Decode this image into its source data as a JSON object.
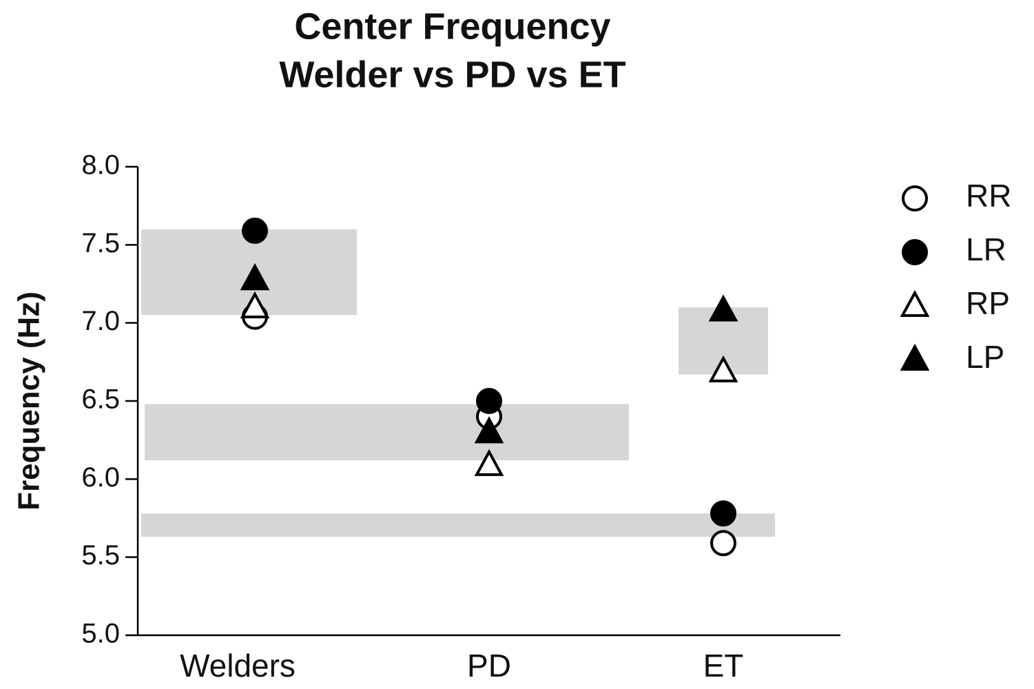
{
  "chart_data": {
    "type": "scatter",
    "title": "Center Frequency",
    "subtitle": "Welder vs PD vs ET",
    "y_label": "Frequency (Hz)",
    "categories": [
      "Welders",
      "PD",
      "ET"
    ],
    "ylim": [
      5.0,
      8.0
    ],
    "yticks": [
      {
        "value": 5.0,
        "label": "5.0"
      },
      {
        "value": 5.5,
        "label": "5.5"
      },
      {
        "value": 6.0,
        "label": "6.0"
      },
      {
        "value": 6.5,
        "label": "6.5"
      },
      {
        "value": 7.0,
        "label": "7.0"
      },
      {
        "value": 7.5,
        "label": "7.5"
      },
      {
        "value": 8.0,
        "label": "8.0"
      }
    ],
    "bands": [
      {
        "low": 7.05,
        "high": 7.6
      },
      {
        "low": 6.12,
        "high": 6.48
      },
      {
        "low": 6.67,
        "high": 7.1
      },
      {
        "low": 5.63,
        "high": 5.78
      }
    ],
    "band_color": "#d6d6d6",
    "series": [
      {
        "name": "RR",
        "marker": "circle",
        "filled": false,
        "color": "#000000",
        "values": [
          7.04,
          6.4,
          5.59
        ]
      },
      {
        "name": "LR",
        "marker": "circle",
        "filled": true,
        "color": "#000000",
        "values": [
          7.59,
          6.5,
          5.78
        ]
      },
      {
        "name": "RP",
        "marker": "triangle",
        "filled": false,
        "color": "#000000",
        "values": [
          7.1,
          6.09,
          6.69
        ]
      },
      {
        "name": "LP",
        "marker": "triangle",
        "filled": true,
        "color": "#000000",
        "values": [
          7.28,
          6.3,
          7.08
        ]
      }
    ]
  }
}
